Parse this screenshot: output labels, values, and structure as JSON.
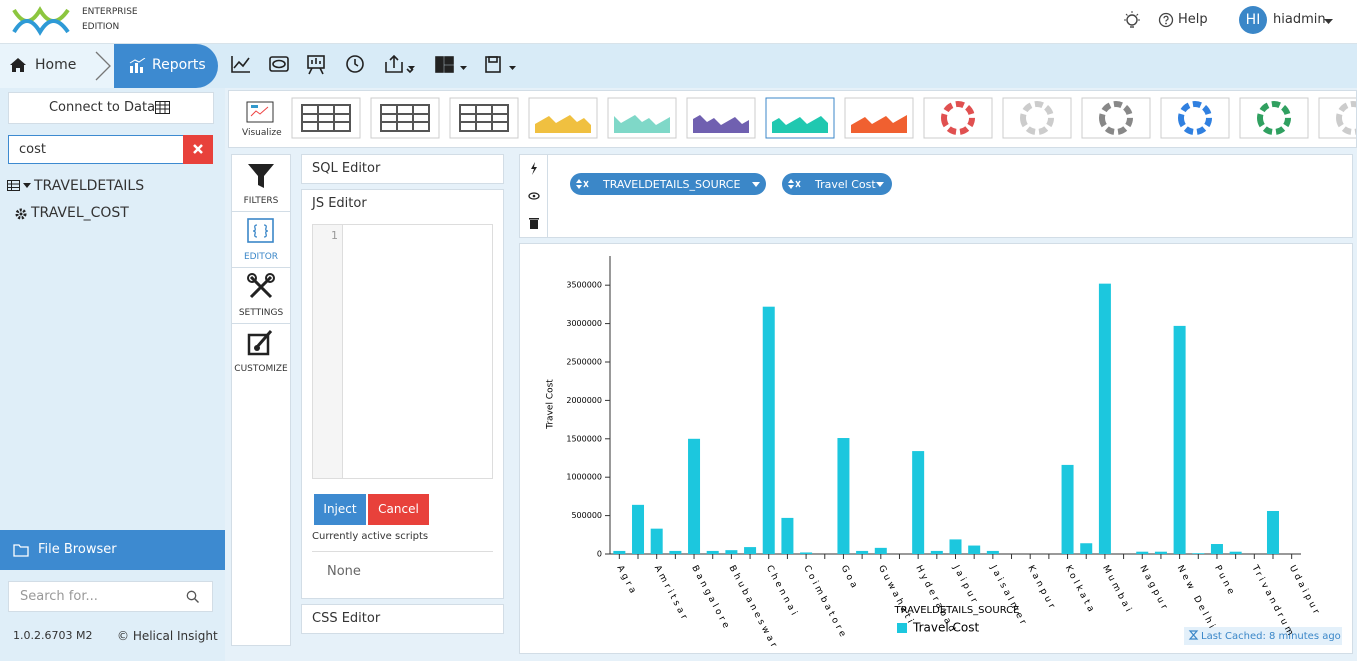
{
  "header": {
    "edition": [
      "ENTERPRISE",
      "EDITION"
    ],
    "help": "Help",
    "avatar": "HI",
    "user": "hiadmin"
  },
  "nav": {
    "home": "Home",
    "reports": "Reports"
  },
  "sidebar": {
    "connect": "Connect to Data",
    "search_value": "cost",
    "tree": [
      "TRAVELDETAILS",
      "TRAVEL_COST"
    ],
    "file_browser": "File Browser",
    "search_placeholder": "Search for...",
    "version": "1.0.2.6703 M2",
    "copyright": "© Helical Insight"
  },
  "visualize": {
    "label": "Visualize"
  },
  "tabs": [
    "FILTERS",
    "EDITOR",
    "SETTINGS",
    "CUSTOMIZE"
  ],
  "editor": {
    "sql": "SQL Editor",
    "js": "JS Editor",
    "line": 1,
    "inject": "Inject",
    "cancel": "Cancel",
    "active": "Currently active scripts",
    "none": "None",
    "css": "CSS Editor"
  },
  "shelf": [
    "TRAVELDETAILS_SOURCE",
    "Travel Cost"
  ],
  "chart_data": {
    "type": "bar",
    "y_label": "Travel Cost",
    "x_label": "TRAVELDETAILS_SOURCE",
    "annotation": "Last Cached: 8 minutes ago",
    "categories": [
      "Agra",
      null,
      "Amritsar",
      null,
      "Bangalore",
      null,
      "Bhubaneswar",
      null,
      "Chennai",
      null,
      "Coimbatore",
      null,
      "Goa",
      null,
      "Guwahati",
      null,
      "Hyderabad",
      null,
      "Jaipur",
      null,
      "Jaisalmer",
      null,
      "Kanpur",
      null,
      "Kolkata",
      null,
      "Mumbai",
      null,
      "Nagpur",
      null,
      "New Delhi",
      null,
      "Pune",
      null,
      "Trivandrum",
      null,
      "Udaipur"
    ],
    "series": [
      {
        "name": "Travel Cost",
        "color": "#1cc7de",
        "values": [
          40000,
          640000,
          330000,
          40000,
          1500000,
          40000,
          50000,
          90000,
          3220000,
          470000,
          20000,
          0,
          1510000,
          40000,
          80000,
          0,
          1340000,
          40000,
          190000,
          110000,
          40000,
          0,
          0,
          0,
          1160000,
          140000,
          3520000,
          0,
          30000,
          30000,
          2970000,
          10000,
          130000,
          30000,
          0,
          560000,
          0
        ]
      }
    ],
    "ylim": [
      0,
      3880000
    ],
    "yticks": [
      0,
      500000,
      1000000,
      1500000,
      2000000,
      2500000,
      3000000,
      3500000
    ],
    "legend": "bottom"
  }
}
